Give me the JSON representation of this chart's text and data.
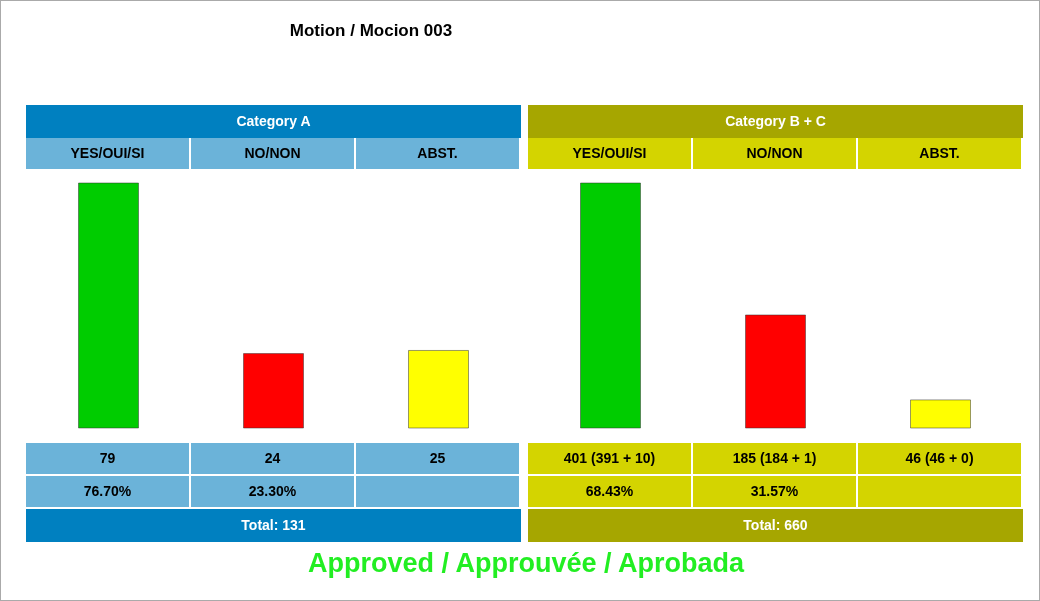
{
  "chart_data": [
    {
      "type": "bar",
      "title": "Category A",
      "categories": [
        "YES/OUI/SI",
        "NO/NON",
        "ABST."
      ],
      "values": [
        79,
        24,
        25
      ],
      "colors": [
        "#00cc00",
        "#ff0000",
        "#ffff00"
      ],
      "value_labels": [
        "79",
        "24",
        "25"
      ],
      "annotations": [
        "Motion / Mocion 003",
        "76.70%",
        "23.30%",
        "Total: 131",
        "Approved / Approuvée / Aprobada"
      ]
    },
    {
      "type": "bar",
      "title": "Category B + C",
      "categories": [
        "YES/OUI/SI",
        "NO/NON",
        "ABST."
      ],
      "values": [
        401,
        185,
        46
      ],
      "colors": [
        "#00cc00",
        "#ff0000",
        "#ffff00"
      ],
      "value_labels": [
        "401 (391 + 10)",
        "185 (184 + 1)",
        "46 (46 + 0)"
      ],
      "annotations": [
        "68.43%",
        "31.57%",
        "Total: 660"
      ]
    }
  ]
}
